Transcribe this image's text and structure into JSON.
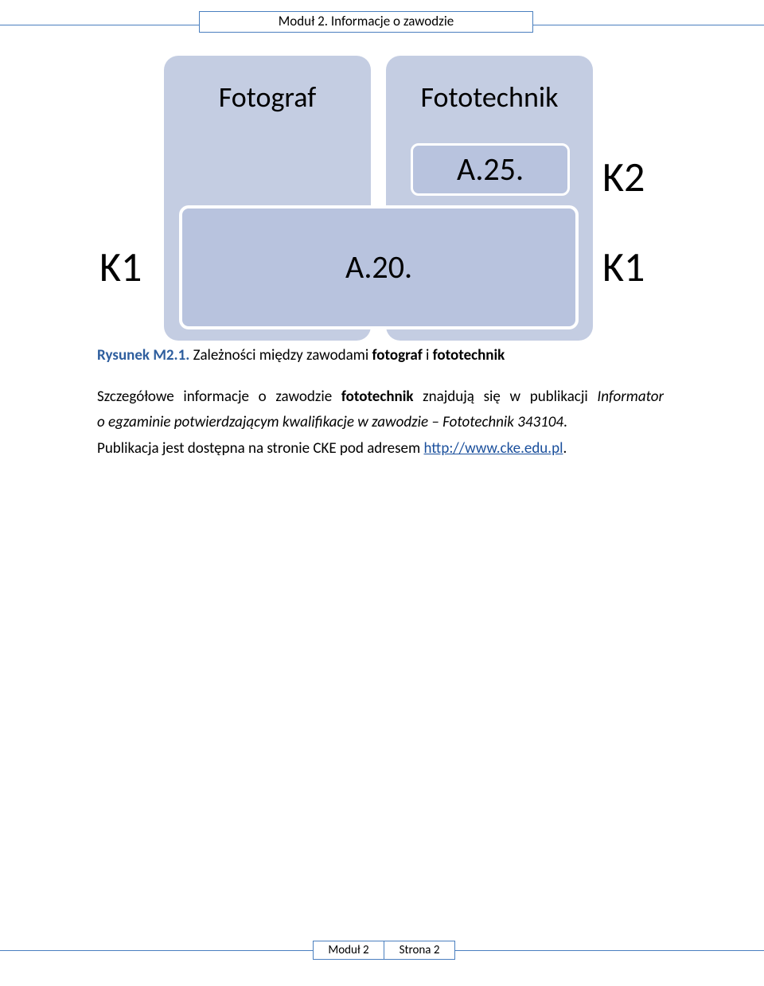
{
  "header": {
    "title": "Moduł 2. Informacje o zawodzie"
  },
  "diagram": {
    "left_box_title": "Fotograf",
    "right_box_title": "Fototechnik",
    "a25": "A.25.",
    "a20": "A.20.",
    "k1_left": "K1",
    "k2_right": "K2",
    "k1_right": "K1",
    "colors": {
      "outer_box_bg": "#c4cde2",
      "inner_box_bg": "#b8c3de",
      "inner_box_border": "#ffffff",
      "rule_color": "#4a7fbf"
    },
    "title_fontsize": 36,
    "label_fontsize": 40,
    "k_fontsize": 52
  },
  "caption": {
    "prefix": "Rysunek M2.1.",
    "mid1": " Zależności między zawodami ",
    "b1": "fotograf",
    "mid2": " i ",
    "b2": "fototechnik"
  },
  "body": {
    "line1_a": "Szczegółowe  informacje  o  zawodzie  ",
    "line1_b": "fototechnik",
    "line1_c": "  znajdują  się  w  publikacji  ",
    "line1_d": "Informator",
    "line2": "o egzaminie potwierdzającym kwalifikacje w zawodzie – Fototechnik 343104",
    "line2_end": ".",
    "line3_a": "Publikacja jest dostępna na stronie CKE pod adresem ",
    "line3_link": "http://www.cke.edu.pl",
    "line3_end": "."
  },
  "footer": {
    "left": "Moduł 2",
    "right": "Strona 2"
  }
}
